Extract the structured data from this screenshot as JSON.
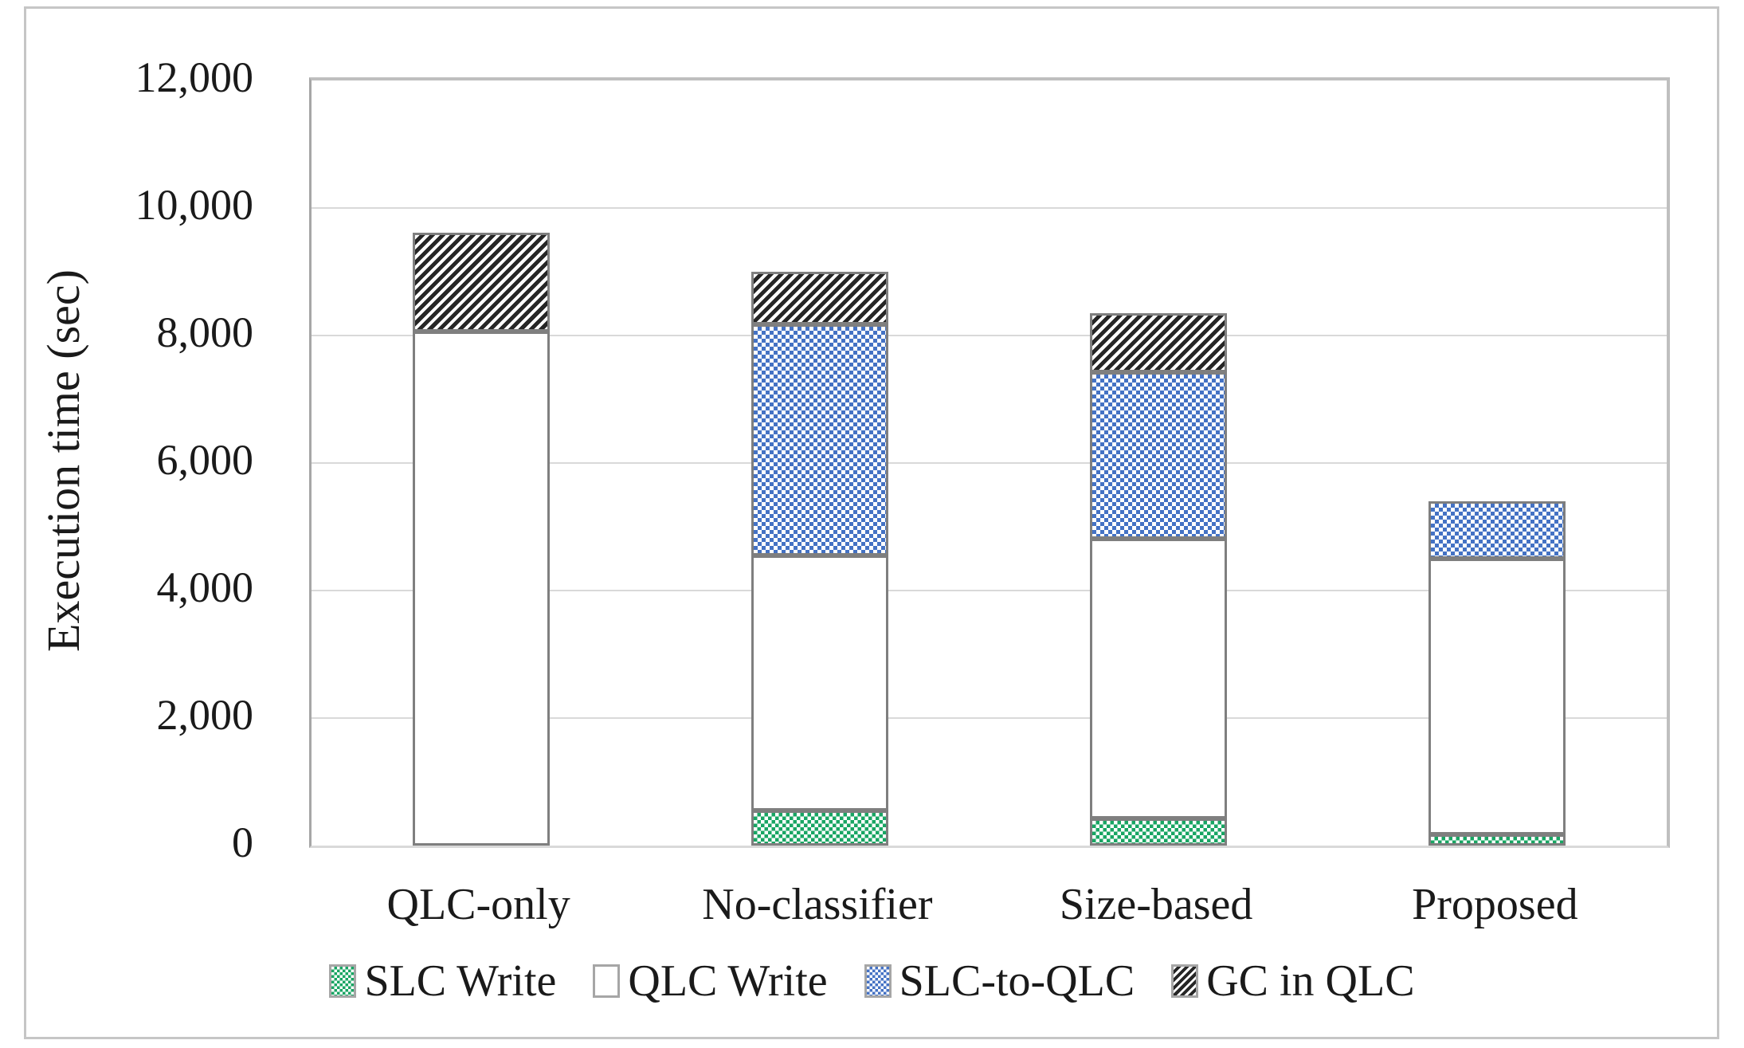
{
  "chart_data": {
    "type": "bar",
    "stacked": true,
    "title": "",
    "xlabel": "",
    "ylabel": "Execution time (sec)",
    "ylim": [
      0,
      12000
    ],
    "ytick_values": [
      0,
      2000,
      4000,
      6000,
      8000,
      10000,
      12000
    ],
    "ytick_labels": [
      "0",
      "2,000",
      "4,000",
      "6,000",
      "8,000",
      "10,000",
      "12,000"
    ],
    "grid": "horizontal",
    "legend_position": "bottom",
    "categories": [
      "QLC-only",
      "No-classifier",
      "Size-based",
      "Proposed"
    ],
    "series": [
      {
        "name": "SLC Write",
        "pattern": "green-checker",
        "color": "#18a563",
        "values": [
          0,
          550,
          420,
          170
        ]
      },
      {
        "name": "QLC Write",
        "pattern": "white",
        "color": "#ffffff",
        "values": [
          8060,
          4000,
          4390,
          4330
        ]
      },
      {
        "name": "SLC-to-QLC",
        "pattern": "blue-checker",
        "color": "#4472c4",
        "values": [
          0,
          3630,
          2620,
          900
        ]
      },
      {
        "name": "GC in QLC",
        "pattern": "black-hatch",
        "color": "#262626",
        "values": [
          1550,
          820,
          920,
          0
        ]
      }
    ],
    "totals": [
      9610,
      9000,
      8350,
      5400
    ]
  },
  "style_colors": {
    "gridline": "#d9d9d9",
    "axis_line": "#a6a6a6",
    "plot_border": "#bfbfbf",
    "bar_border": "#7f7f7f",
    "text": "#1a1a1a",
    "figure_frame": "#c6c6c6"
  }
}
